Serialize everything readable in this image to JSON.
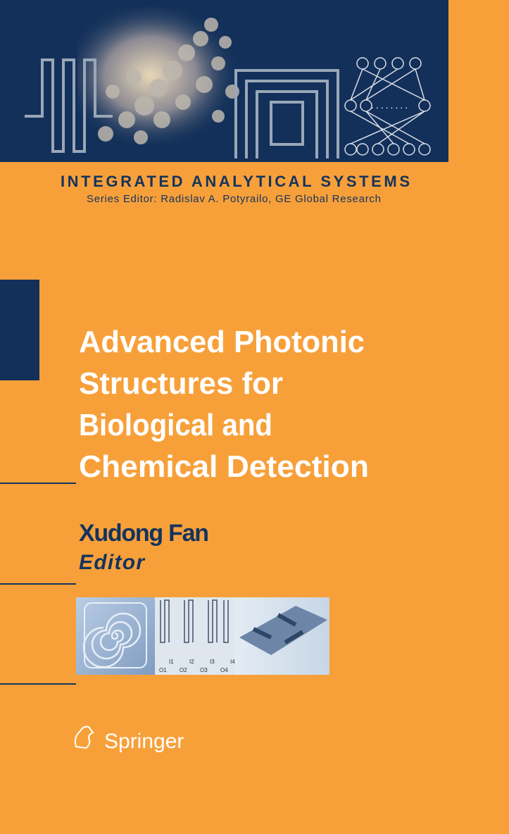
{
  "series": {
    "title": "INTEGRATED ANALYTICAL SYSTEMS",
    "editor": "Series Editor: Radislav A. Potyrailo, GE Global Research"
  },
  "book": {
    "title_lines": [
      "Advanced Photonic",
      "Structures for",
      "Biological and",
      "Chemical Detection"
    ],
    "author": "Xudong Fan",
    "role": "Editor"
  },
  "figure": {
    "inputs": [
      "I1",
      "I2",
      "I3",
      "I4"
    ],
    "outputs": [
      "O1",
      "O2",
      "O3",
      "O4"
    ]
  },
  "publisher": "Springer"
}
